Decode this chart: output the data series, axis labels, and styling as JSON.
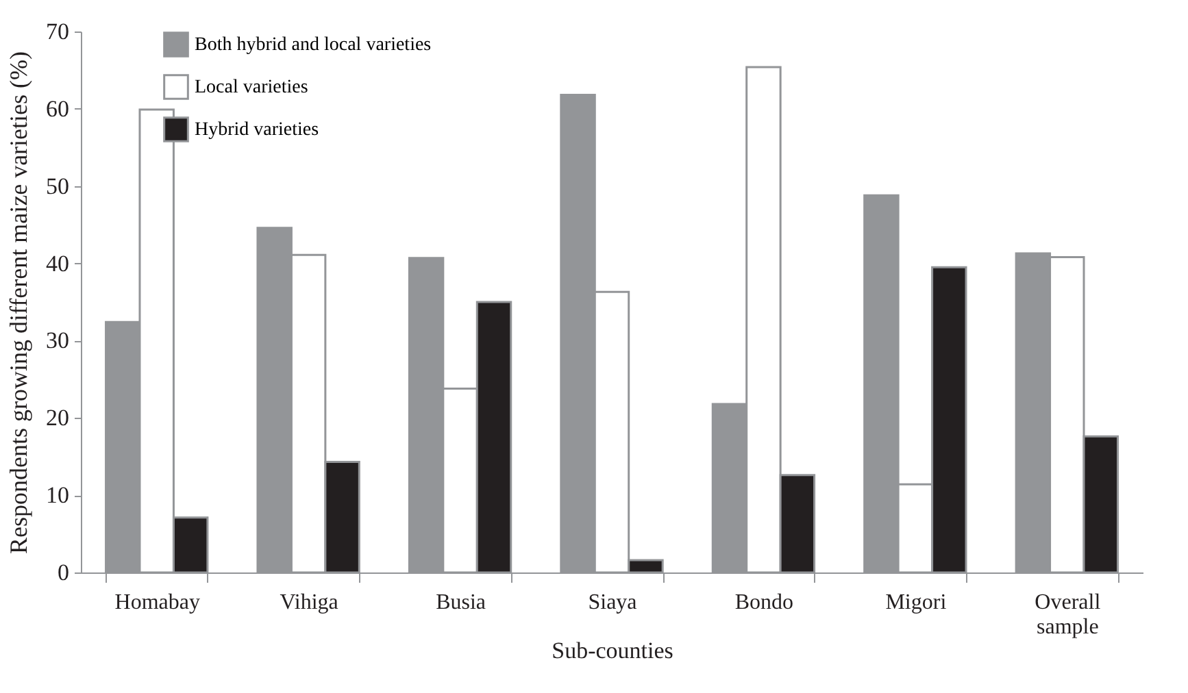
{
  "chart_data": {
    "type": "bar",
    "xlabel": "Sub-counties",
    "ylabel": "Respondents growing different maize varieties (%)",
    "categories": [
      "Homabay",
      "Vihiga",
      "Busia",
      "Siaya",
      "Bondo",
      "Migori",
      "Overall sample"
    ],
    "series": [
      {
        "name": "Both hybrid and local varieties",
        "color": "#939598",
        "values": [
          32.4,
          44.6,
          40.7,
          61.8,
          21.8,
          48.8,
          41.3
        ]
      },
      {
        "name": "Local varieties",
        "color": "#ffffff",
        "values": [
          59.9,
          41.1,
          23.8,
          36.3,
          65.4,
          11.4,
          40.8
        ]
      },
      {
        "name": "Hybrid varieties",
        "color": "#231f20",
        "values": [
          7.1,
          14.3,
          35.0,
          1.6,
          12.6,
          39.5,
          17.6
        ]
      }
    ],
    "ylim": [
      0,
      70
    ],
    "yticks": [
      0,
      10,
      20,
      30,
      40,
      50,
      60,
      70
    ],
    "grid": false,
    "legend": "top left"
  }
}
